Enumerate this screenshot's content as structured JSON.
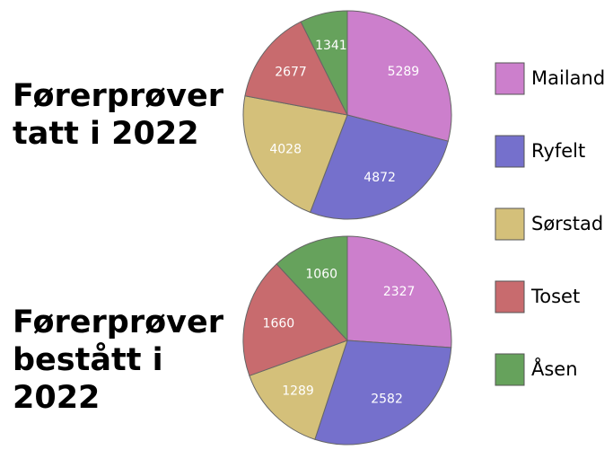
{
  "chart_data": [
    {
      "type": "pie",
      "title": "Førerprøver tatt i 2022",
      "categories": [
        "Mailand",
        "Ryfelt",
        "Sørstad",
        "Toset",
        "Åsen"
      ],
      "values": [
        5289,
        4872,
        4028,
        2677,
        1341
      ],
      "colors": [
        "#cc7fcc",
        "#7570cc",
        "#d4c07a",
        "#c86b6e",
        "#66a25c"
      ]
    },
    {
      "type": "pie",
      "title": "Førerprøver bestått i 2022",
      "categories": [
        "Mailand",
        "Ryfelt",
        "Sørstad",
        "Toset",
        "Åsen"
      ],
      "values": [
        2327,
        2582,
        1289,
        1660,
        1060
      ],
      "colors": [
        "#cc7fcc",
        "#7570cc",
        "#d4c07a",
        "#c86b6e",
        "#66a25c"
      ]
    }
  ]
}
